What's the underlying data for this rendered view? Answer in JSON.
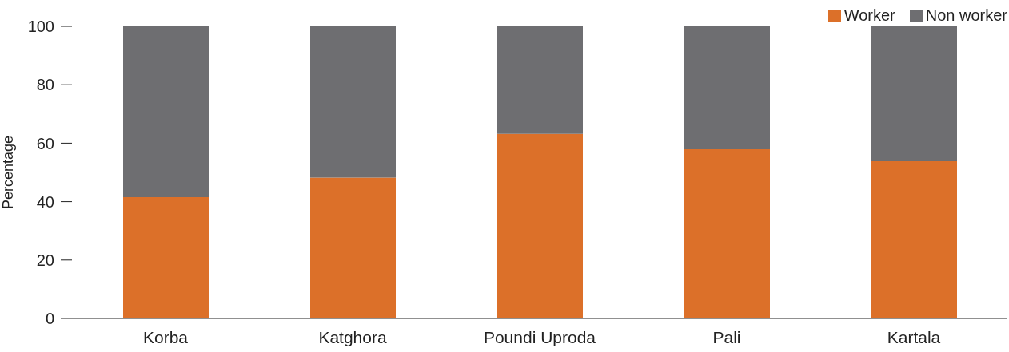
{
  "chart_data": {
    "type": "bar",
    "stacked": true,
    "ylabel": "Percentage",
    "categories": [
      "Korba",
      "Katghora",
      "Poundi Uproda",
      "Pali",
      "Kartala"
    ],
    "series": [
      {
        "name": "Worker",
        "color": "#dc7029",
        "values": [
          41.5,
          48.2,
          63.2,
          57.9,
          53.8
        ]
      },
      {
        "name": "Non worker",
        "color": "#6e6e71",
        "values": [
          58.5,
          51.8,
          36.8,
          42.1,
          46.2
        ]
      }
    ],
    "ylim": [
      0,
      100
    ],
    "yticks": [
      0,
      20,
      40,
      60,
      80,
      100
    ],
    "grid": false,
    "legend": "top right"
  }
}
